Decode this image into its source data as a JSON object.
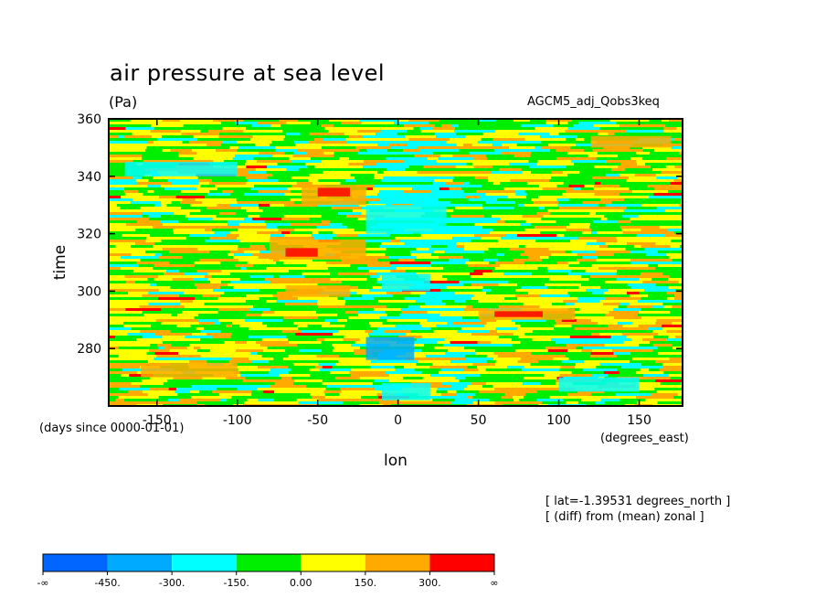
{
  "header": {
    "title": "air pressure at sea level",
    "units": "(Pa)",
    "model": "AGCM5_adj_Qobs3keq"
  },
  "notes": {
    "lat": "[ lat=-1.39531 degrees_north ]",
    "diff": "[ (diff) from (mean) zonal ]"
  },
  "chart_data": {
    "type": "heatmap",
    "title": "air pressure at sea level",
    "subtitle": "(Pa)",
    "xlabel": "lon",
    "xunits": "(degrees_east)",
    "ylabel": "time",
    "yunits": "(days since 0000-01-01)",
    "xlim": [
      -180,
      177
    ],
    "ylim": [
      260,
      360
    ],
    "xticks": [
      -150,
      -100,
      -50,
      0,
      50,
      100,
      150
    ],
    "xtick_labels": [
      "-150",
      "-100",
      "-50",
      "0",
      "50",
      "100",
      "150"
    ],
    "yticks": [
      280,
      300,
      320,
      340,
      360
    ],
    "ytick_labels": [
      "280",
      "300",
      "320",
      "340",
      "360"
    ],
    "colorbar": {
      "colors": [
        "#0066ff",
        "#00aaff",
        "#00ffff",
        "#00ee00",
        "#ffff00",
        "#ffaa00",
        "#ff0000"
      ],
      "labels": [
        "-∞",
        "-450.",
        "-300.",
        "-150.",
        "0.00",
        "150.",
        "300.",
        "∞"
      ]
    },
    "patches": [
      {
        "lon": [
          -60,
          -20
        ],
        "time": [
          330,
          337
        ],
        "level": 5
      },
      {
        "lon": [
          -50,
          -30
        ],
        "time": [
          333,
          336
        ],
        "level": 6
      },
      {
        "lon": [
          -80,
          -20
        ],
        "time": [
          311,
          318
        ],
        "level": 5
      },
      {
        "lon": [
          -70,
          -50
        ],
        "time": [
          312,
          315
        ],
        "level": 6
      },
      {
        "lon": [
          -70,
          -30
        ],
        "time": [
          298,
          302
        ],
        "level": 5
      },
      {
        "lon": [
          -20,
          30
        ],
        "time": [
          320,
          330
        ],
        "level": 2
      },
      {
        "lon": [
          -10,
          20
        ],
        "time": [
          300,
          306
        ],
        "level": 2
      },
      {
        "lon": [
          -20,
          10
        ],
        "time": [
          276,
          284
        ],
        "level": 1
      },
      {
        "lon": [
          -10,
          20
        ],
        "time": [
          262,
          268
        ],
        "level": 2
      },
      {
        "lon": [
          -170,
          -100
        ],
        "time": [
          340,
          345
        ],
        "level": 2
      },
      {
        "lon": [
          50,
          110
        ],
        "time": [
          290,
          294
        ],
        "level": 5
      },
      {
        "lon": [
          60,
          90
        ],
        "time": [
          291,
          293
        ],
        "level": 6
      },
      {
        "lon": [
          -160,
          -100
        ],
        "time": [
          270,
          275
        ],
        "level": 5
      },
      {
        "lon": [
          120,
          170
        ],
        "time": [
          350,
          354
        ],
        "level": 5
      },
      {
        "lon": [
          100,
          150
        ],
        "time": [
          265,
          270
        ],
        "level": 2
      }
    ]
  }
}
